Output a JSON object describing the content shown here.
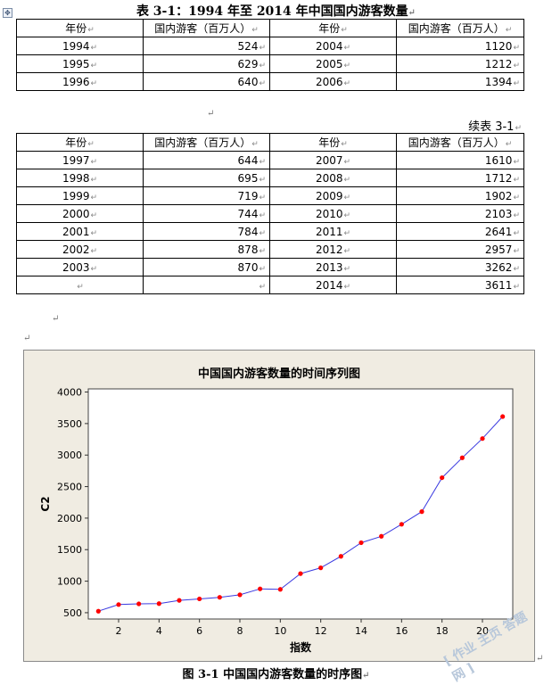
{
  "table1": {
    "title": "表 3-1：1994 年至 2014 年中国国内游客数量",
    "headers": [
      "年份",
      "国内游客（百万人）",
      "年份",
      "国内游客（百万人）"
    ],
    "rows": [
      [
        "1994",
        "524",
        "2004",
        "1120"
      ],
      [
        "1995",
        "629",
        "2005",
        "1212"
      ],
      [
        "1996",
        "640",
        "2006",
        "1394"
      ]
    ]
  },
  "table2": {
    "caption": "续表 3-1",
    "headers": [
      "年份",
      "国内游客（百万人）",
      "年份",
      "国内游客（百万人）"
    ],
    "rows": [
      [
        "1997",
        "644",
        "2007",
        "1610"
      ],
      [
        "1998",
        "695",
        "2008",
        "1712"
      ],
      [
        "1999",
        "719",
        "2009",
        "1902"
      ],
      [
        "2000",
        "744",
        "2010",
        "2103"
      ],
      [
        "2001",
        "784",
        "2011",
        "2641"
      ],
      [
        "2002",
        "878",
        "2012",
        "2957"
      ],
      [
        "2003",
        "870",
        "2013",
        "3262"
      ],
      [
        "",
        "",
        "2014",
        "3611"
      ]
    ]
  },
  "para_mark": "↵",
  "anchor_icon": "✥",
  "figure_caption": "图 3-1  中国国内游客数量的时序图",
  "watermark": "[ 作业 主页 答题 网 ]",
  "colors": {
    "line": "#3a3ae0",
    "marker": "#ff0000",
    "chart_bg": "#f0ece2",
    "plot_bg": "#ffffff"
  },
  "chart_data": {
    "type": "line",
    "title": "中国国内游客数量的时间序列图",
    "xlabel": "指数",
    "ylabel": "C2",
    "x": [
      1,
      2,
      3,
      4,
      5,
      6,
      7,
      8,
      9,
      10,
      11,
      12,
      13,
      14,
      15,
      16,
      17,
      18,
      19,
      20,
      21
    ],
    "series": [
      {
        "values": [
          524,
          629,
          640,
          644,
          695,
          719,
          744,
          784,
          878,
          870,
          1120,
          1212,
          1394,
          1610,
          1712,
          1902,
          2103,
          2641,
          2957,
          3262,
          3611
        ]
      }
    ],
    "xticks": [
      2,
      4,
      6,
      8,
      10,
      12,
      14,
      16,
      18,
      20
    ],
    "yticks": [
      500,
      1000,
      1500,
      2000,
      2500,
      3000,
      3500,
      4000
    ],
    "xlim": [
      0.5,
      21.5
    ],
    "ylim": [
      400,
      4050
    ],
    "grid": false
  }
}
